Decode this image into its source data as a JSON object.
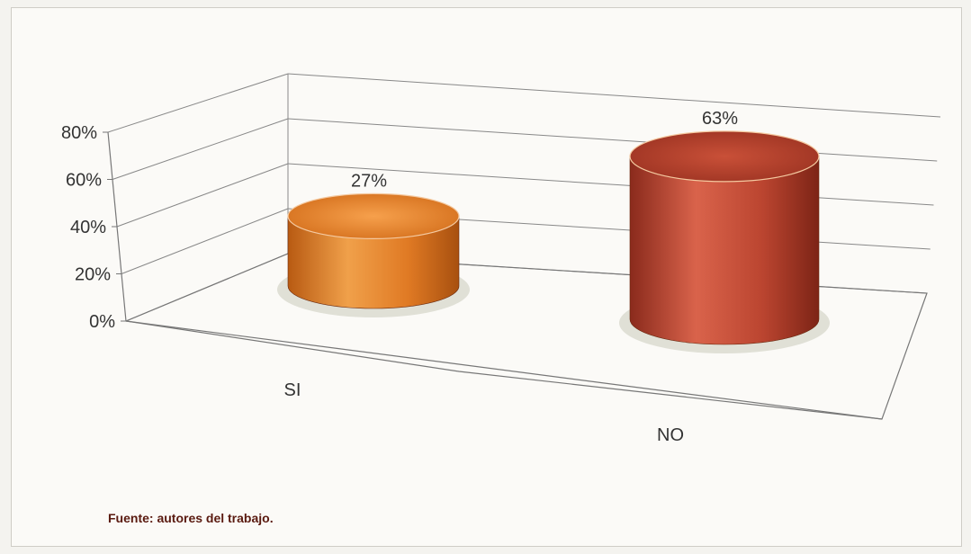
{
  "chart_data": {
    "type": "bar",
    "style": "3d-cylinder",
    "categories": [
      "SI",
      "NO"
    ],
    "values": [
      27,
      63
    ],
    "value_labels": [
      "27%",
      "63%"
    ],
    "colors": [
      "#e8852b",
      "#b8412c"
    ],
    "y_ticks": [
      "0%",
      "20%",
      "40%",
      "60%",
      "80%"
    ],
    "ylim": [
      0,
      80
    ],
    "grid": true,
    "legend": "none"
  },
  "source_note": "Fuente:  autores del trabajo."
}
